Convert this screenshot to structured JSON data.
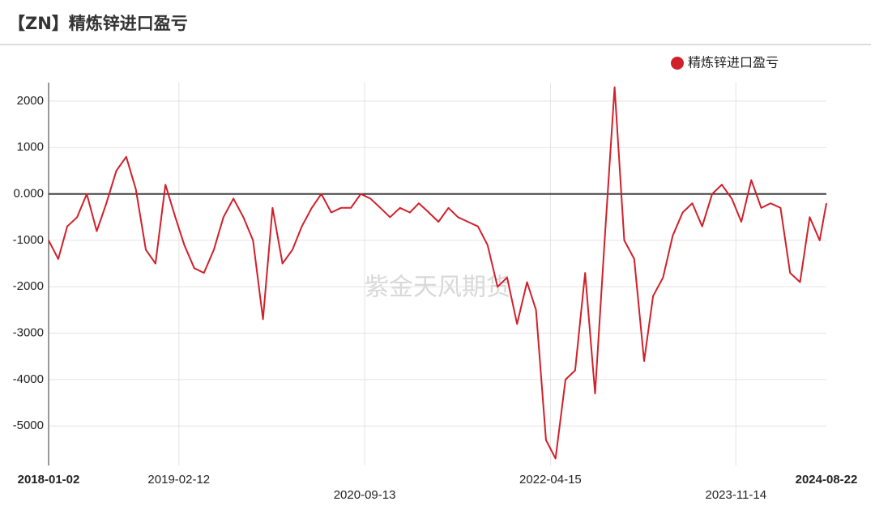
{
  "chart_data": {
    "type": "line",
    "title": "【ZN】精炼锌进口盈亏",
    "watermark": "紫金天风期货",
    "x": [
      "2018-01-02",
      "2018-02-01",
      "2018-03-01",
      "2018-04-01",
      "2018-05-01",
      "2018-06-01",
      "2018-07-01",
      "2018-08-01",
      "2018-09-01",
      "2018-10-01",
      "2018-11-01",
      "2018-12-01",
      "2019-01-01",
      "2019-02-01",
      "2019-03-01",
      "2019-04-01",
      "2019-05-01",
      "2019-06-01",
      "2019-07-01",
      "2019-08-01",
      "2019-09-01",
      "2019-10-01",
      "2019-11-01",
      "2019-12-01",
      "2020-01-01",
      "2020-02-01",
      "2020-03-01",
      "2020-04-01",
      "2020-05-01",
      "2020-06-01",
      "2020-07-01",
      "2020-08-01",
      "2020-09-01",
      "2020-10-01",
      "2020-11-01",
      "2020-12-01",
      "2021-01-01",
      "2021-02-01",
      "2021-03-01",
      "2021-04-01",
      "2021-05-01",
      "2021-06-01",
      "2021-07-01",
      "2021-08-01",
      "2021-09-01",
      "2021-10-01",
      "2021-11-01",
      "2021-12-01",
      "2022-01-01",
      "2022-02-01",
      "2022-03-01",
      "2022-04-01",
      "2022-05-01",
      "2022-06-01",
      "2022-07-01",
      "2022-08-01",
      "2022-09-01",
      "2022-10-01",
      "2022-11-01",
      "2022-12-01",
      "2023-01-01",
      "2023-02-01",
      "2023-03-01",
      "2023-04-01",
      "2023-05-01",
      "2023-06-01",
      "2023-07-01",
      "2023-08-01",
      "2023-09-01",
      "2023-10-01",
      "2023-11-01",
      "2023-12-01",
      "2024-01-01",
      "2024-02-01",
      "2024-03-01",
      "2024-04-01",
      "2024-05-01",
      "2024-06-01",
      "2024-07-01",
      "2024-08-01",
      "2024-08-22"
    ],
    "series": [
      {
        "name": "精炼锌进口盈亏",
        "color": "#d0202a",
        "values": [
          -1000,
          -1400,
          -700,
          -500,
          0,
          -800,
          -200,
          500,
          800,
          100,
          -1200,
          -1500,
          200,
          -500,
          -1100,
          -1600,
          -1700,
          -1200,
          -500,
          -100,
          -500,
          -1000,
          -2700,
          -300,
          -1500,
          -1200,
          -700,
          -300,
          0,
          -400,
          -300,
          -300,
          0,
          -100,
          -300,
          -500,
          -300,
          -400,
          -200,
          -400,
          -600,
          -300,
          -500,
          -600,
          -700,
          -1100,
          -2000,
          -1800,
          -2800,
          -1900,
          -2500,
          -5300,
          -5700,
          -4000,
          -3800,
          -1700,
          -4300,
          -1000,
          2300,
          -1000,
          -1400,
          -3600,
          -2200,
          -1800,
          -900,
          -400,
          -200,
          -700,
          0,
          200,
          -100,
          -600,
          300,
          -300,
          -200,
          -300,
          -1700,
          -1900,
          -500,
          -1000,
          -200
        ]
      }
    ],
    "xlim": [
      "2018-01-02",
      "2024-08-22"
    ],
    "xticks": [
      "2018-01-02",
      "2019-02-12",
      "2020-09-13",
      "2022-04-15",
      "2023-11-14",
      "2024-08-22"
    ],
    "ylim": [
      -5850,
      2400
    ],
    "yticks": [
      2000,
      1000,
      {
        "value": 0,
        "label": "0.000"
      },
      -1000,
      -2000,
      -3000,
      -4000,
      -5000
    ],
    "grid": true,
    "legend": "top-right"
  }
}
